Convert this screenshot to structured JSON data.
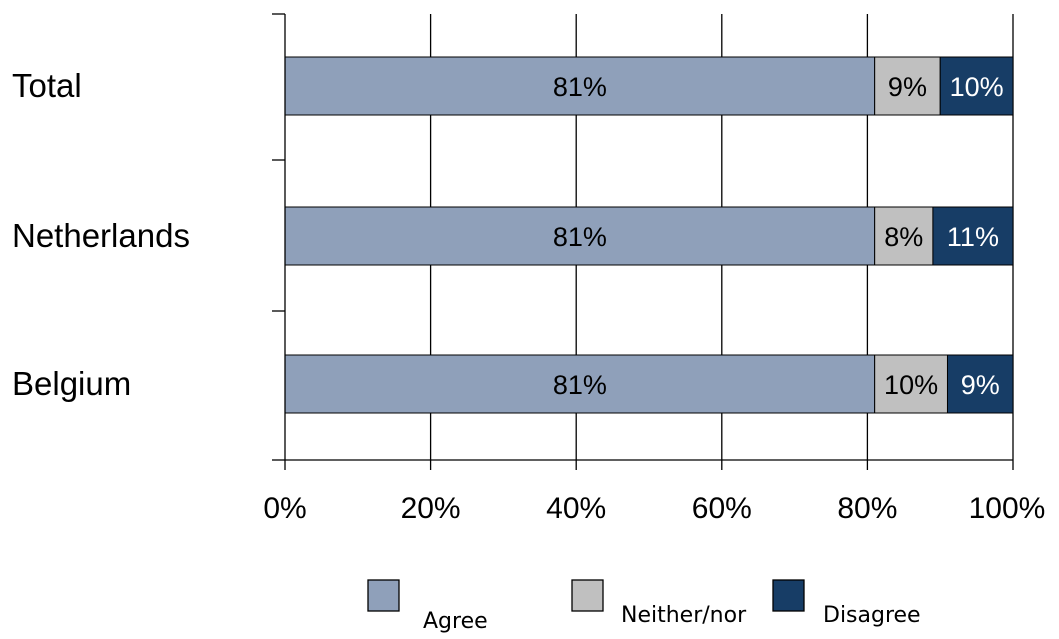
{
  "chart_data": {
    "type": "bar",
    "orientation": "horizontal",
    "stacked": true,
    "categories": [
      "Total",
      "Netherlands",
      "Belgium"
    ],
    "series": [
      {
        "name": "Agree",
        "values": [
          81,
          81,
          81
        ],
        "color": "#8fa0ba",
        "label_color": "#000000"
      },
      {
        "name": "Neither/nor",
        "values": [
          9,
          8,
          10
        ],
        "color": "#c0c0c0",
        "label_color": "#000000"
      },
      {
        "name": "Disagree",
        "values": [
          10,
          11,
          9
        ],
        "color": "#173d66",
        "label_color": "#ffffff"
      }
    ],
    "data_labels": [
      [
        "81%",
        "9%",
        "10%"
      ],
      [
        "81%",
        "8%",
        "11%"
      ],
      [
        "81%",
        "10%",
        "9%"
      ]
    ],
    "xticks": [
      "0%",
      "20%",
      "40%",
      "60%",
      "80%",
      "100%"
    ],
    "xlim": [
      0,
      100
    ],
    "grid": true,
    "legend_position": "bottom",
    "title": "",
    "xlabel": "",
    "ylabel": ""
  }
}
